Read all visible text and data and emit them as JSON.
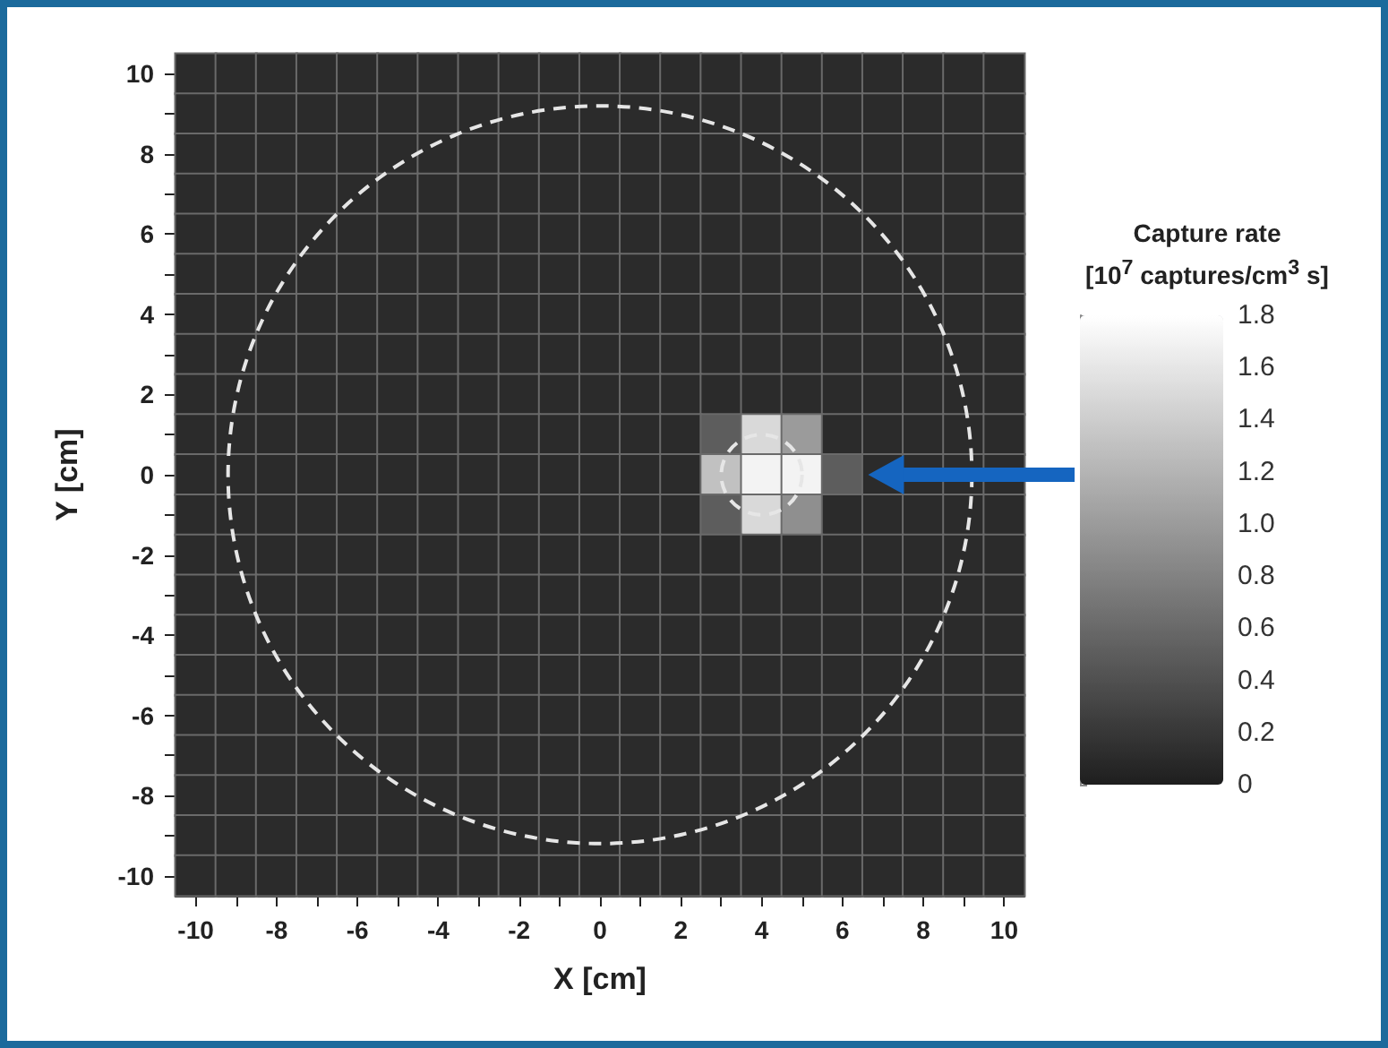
{
  "chart_data": {
    "type": "heatmap",
    "xlabel": "X [cm]",
    "ylabel": "Y [cm]",
    "clabel": "Capture rate\n[10$^{7}$ captures/cm$^{3}$ s]",
    "categories": [
      "-10",
      null,
      "-8",
      null,
      "-6",
      null,
      "-4",
      null,
      "-2",
      null,
      "0",
      null,
      "2",
      null,
      "4",
      null,
      "6",
      null,
      "8",
      null,
      "10"
    ],
    "y_categories": [
      "10",
      null,
      "8",
      null,
      "6",
      null,
      "4",
      null,
      "2",
      null,
      "0",
      null,
      "-2",
      null,
      "-4",
      null,
      "-6",
      null,
      "-8",
      null,
      "-10"
    ],
    "cells": [
      [
        0.1,
        0.1,
        0.1,
        0.1,
        0.1,
        0.1,
        0.1,
        0.1,
        0.1,
        0.1,
        0.1,
        0.1,
        0.1,
        0.1,
        0.1,
        0.1,
        0.1,
        0.1,
        0.1,
        0.1,
        0.1
      ],
      [
        0.1,
        0.1,
        0.1,
        0.1,
        0.1,
        0.1,
        0.1,
        0.1,
        0.1,
        0.1,
        0.1,
        0.1,
        0.1,
        0.1,
        0.1,
        0.1,
        0.1,
        0.1,
        0.1,
        0.1,
        0.1
      ],
      [
        0.1,
        0.1,
        0.1,
        0.1,
        0.1,
        0.1,
        0.1,
        0.1,
        0.1,
        0.1,
        0.1,
        0.1,
        0.1,
        0.1,
        0.1,
        0.1,
        0.1,
        0.1,
        0.1,
        0.1,
        0.1
      ],
      [
        0.1,
        0.1,
        0.1,
        0.1,
        0.1,
        0.1,
        0.1,
        0.1,
        0.1,
        0.1,
        0.1,
        0.1,
        0.1,
        0.1,
        0.1,
        0.1,
        0.1,
        0.1,
        0.1,
        0.1,
        0.1
      ],
      [
        0.1,
        0.1,
        0.1,
        0.1,
        0.1,
        0.1,
        0.1,
        0.1,
        0.1,
        0.1,
        0.1,
        0.1,
        0.1,
        0.1,
        0.1,
        0.1,
        0.1,
        0.1,
        0.1,
        0.1,
        0.1
      ],
      [
        0.1,
        0.1,
        0.1,
        0.1,
        0.1,
        0.1,
        0.1,
        0.1,
        0.1,
        0.1,
        0.1,
        0.1,
        0.1,
        0.1,
        0.1,
        0.1,
        0.1,
        0.1,
        0.1,
        0.1,
        0.1
      ],
      [
        0.1,
        0.1,
        0.1,
        0.1,
        0.1,
        0.1,
        0.1,
        0.1,
        0.1,
        0.1,
        0.1,
        0.1,
        0.1,
        0.1,
        0.1,
        0.1,
        0.1,
        0.1,
        0.1,
        0.1,
        0.1
      ],
      [
        0.1,
        0.1,
        0.1,
        0.1,
        0.1,
        0.1,
        0.1,
        0.1,
        0.1,
        0.1,
        0.1,
        0.1,
        0.1,
        0.1,
        0.1,
        0.1,
        0.1,
        0.1,
        0.1,
        0.1,
        0.1
      ],
      [
        0.1,
        0.1,
        0.1,
        0.1,
        0.1,
        0.1,
        0.1,
        0.1,
        0.1,
        0.1,
        0.1,
        0.1,
        0.1,
        0.1,
        0.1,
        0.1,
        0.1,
        0.1,
        0.1,
        0.1,
        0.1
      ],
      [
        0.1,
        0.1,
        0.1,
        0.1,
        0.1,
        0.1,
        0.1,
        0.1,
        0.1,
        0.1,
        0.1,
        0.1,
        0.1,
        0.5,
        1.5,
        1.0,
        0.1,
        0.1,
        0.1,
        0.1,
        0.1
      ],
      [
        0.1,
        0.1,
        0.1,
        0.1,
        0.1,
        0.1,
        0.1,
        0.1,
        0.1,
        0.1,
        0.1,
        0.1,
        0.1,
        1.3,
        1.7,
        1.7,
        0.5,
        0.1,
        0.1,
        0.1,
        0.1
      ],
      [
        0.1,
        0.1,
        0.1,
        0.1,
        0.1,
        0.1,
        0.1,
        0.1,
        0.1,
        0.1,
        0.1,
        0.1,
        0.1,
        0.5,
        1.5,
        0.9,
        0.1,
        0.1,
        0.1,
        0.1,
        0.1
      ],
      [
        0.1,
        0.1,
        0.1,
        0.1,
        0.1,
        0.1,
        0.1,
        0.1,
        0.1,
        0.1,
        0.1,
        0.1,
        0.1,
        0.1,
        0.1,
        0.1,
        0.1,
        0.1,
        0.1,
        0.1,
        0.1
      ],
      [
        0.1,
        0.1,
        0.1,
        0.1,
        0.1,
        0.1,
        0.1,
        0.1,
        0.1,
        0.1,
        0.1,
        0.1,
        0.1,
        0.1,
        0.1,
        0.1,
        0.1,
        0.1,
        0.1,
        0.1,
        0.1
      ],
      [
        0.1,
        0.1,
        0.1,
        0.1,
        0.1,
        0.1,
        0.1,
        0.1,
        0.1,
        0.1,
        0.1,
        0.1,
        0.1,
        0.1,
        0.1,
        0.1,
        0.1,
        0.1,
        0.1,
        0.1,
        0.1
      ],
      [
        0.1,
        0.1,
        0.1,
        0.1,
        0.1,
        0.1,
        0.1,
        0.1,
        0.1,
        0.1,
        0.1,
        0.1,
        0.1,
        0.1,
        0.1,
        0.1,
        0.1,
        0.1,
        0.1,
        0.1,
        0.1
      ],
      [
        0.1,
        0.1,
        0.1,
        0.1,
        0.1,
        0.1,
        0.1,
        0.1,
        0.1,
        0.1,
        0.1,
        0.1,
        0.1,
        0.1,
        0.1,
        0.1,
        0.1,
        0.1,
        0.1,
        0.1,
        0.1
      ],
      [
        0.1,
        0.1,
        0.1,
        0.1,
        0.1,
        0.1,
        0.1,
        0.1,
        0.1,
        0.1,
        0.1,
        0.1,
        0.1,
        0.1,
        0.1,
        0.1,
        0.1,
        0.1,
        0.1,
        0.1,
        0.1
      ],
      [
        0.1,
        0.1,
        0.1,
        0.1,
        0.1,
        0.1,
        0.1,
        0.1,
        0.1,
        0.1,
        0.1,
        0.1,
        0.1,
        0.1,
        0.1,
        0.1,
        0.1,
        0.1,
        0.1,
        0.1,
        0.1
      ],
      [
        0.1,
        0.1,
        0.1,
        0.1,
        0.1,
        0.1,
        0.1,
        0.1,
        0.1,
        0.1,
        0.1,
        0.1,
        0.1,
        0.1,
        0.1,
        0.1,
        0.1,
        0.1,
        0.1,
        0.1,
        0.1
      ],
      [
        0.1,
        0.1,
        0.1,
        0.1,
        0.1,
        0.1,
        0.1,
        0.1,
        0.1,
        0.1,
        0.1,
        0.1,
        0.1,
        0.1,
        0.1,
        0.1,
        0.1,
        0.1,
        0.1,
        0.1,
        0.1
      ]
    ],
    "clim": [
      0,
      1.8
    ],
    "cticks": [
      0,
      0.2,
      0.4,
      0.6,
      0.8,
      {
        "value": 1,
        "label": "1.0"
      },
      1.2,
      1.4,
      1.6,
      1.8
    ]
  }
}
